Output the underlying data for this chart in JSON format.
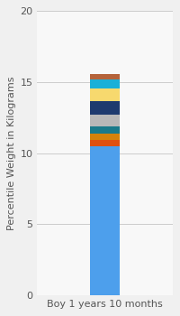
{
  "category": "Boy 1 years 10 months",
  "segments": [
    {
      "value": 10.5,
      "color": "#4d9fec"
    },
    {
      "value": 0.45,
      "color": "#e05010"
    },
    {
      "value": 0.4,
      "color": "#d4820a"
    },
    {
      "value": 0.5,
      "color": "#1a7a8a"
    },
    {
      "value": 0.85,
      "color": "#b8b8b8"
    },
    {
      "value": 0.95,
      "color": "#1e3a6e"
    },
    {
      "value": 0.9,
      "color": "#f7d96e"
    },
    {
      "value": 0.65,
      "color": "#1ab0d8"
    },
    {
      "value": 0.35,
      "color": "#b5633a"
    }
  ],
  "ylabel": "Percentile Weight in Kilograms",
  "ylim": [
    0,
    20
  ],
  "yticks": [
    0,
    5,
    10,
    15,
    20
  ],
  "bg_color": "#f0f0f0",
  "plot_bg_color": "#f8f8f8",
  "ylabel_fontsize": 8,
  "tick_fontsize": 8,
  "bar_width": 0.35,
  "xlim": [
    -0.8,
    0.8
  ]
}
